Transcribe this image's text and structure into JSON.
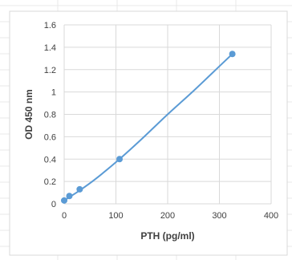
{
  "chart_data": {
    "type": "scatter",
    "title": "",
    "xlabel": "PTH (pg/ml)",
    "ylabel": "OD 450 nm",
    "xlim": [
      0,
      400
    ],
    "ylim": [
      0,
      1.6
    ],
    "x_ticks": [
      0,
      100,
      200,
      300,
      400
    ],
    "y_ticks": [
      0,
      0.2,
      0.4,
      0.6,
      0.8,
      1,
      1.2,
      1.4,
      1.6
    ],
    "grid": true,
    "legend": "none",
    "colors": {
      "series": "#5b9bd5",
      "grid": "#d9d9d9",
      "text": "#404040",
      "sheet_grid": "#e8e8e8"
    },
    "series": [
      {
        "points": [
          {
            "x": 0,
            "y": 0.03
          },
          {
            "x": 10,
            "y": 0.07
          },
          {
            "x": 30,
            "y": 0.13
          },
          {
            "x": 107,
            "y": 0.4
          },
          {
            "x": 325,
            "y": 1.34
          }
        ],
        "curve": [
          {
            "x": 0,
            "y": 0.03
          },
          {
            "x": 10,
            "y": 0.06
          },
          {
            "x": 30,
            "y": 0.12
          },
          {
            "x": 60,
            "y": 0.22
          },
          {
            "x": 107,
            "y": 0.4
          },
          {
            "x": 150,
            "y": 0.58
          },
          {
            "x": 200,
            "y": 0.8
          },
          {
            "x": 250,
            "y": 1.01
          },
          {
            "x": 300,
            "y": 1.23
          },
          {
            "x": 325,
            "y": 1.34
          }
        ]
      }
    ]
  }
}
